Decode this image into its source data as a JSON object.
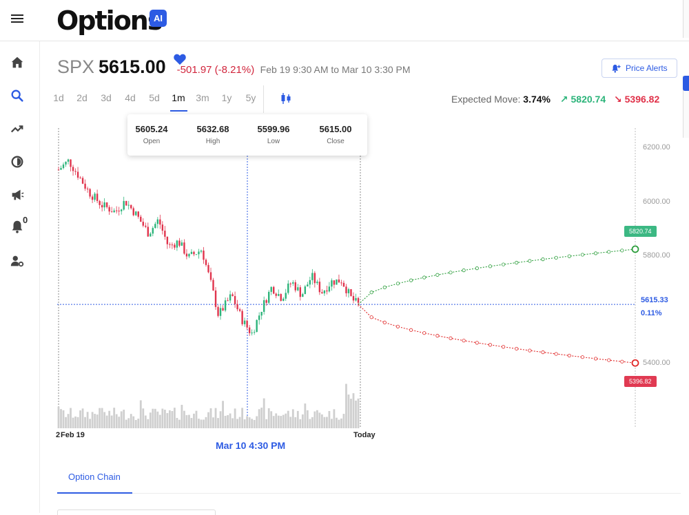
{
  "app": {
    "logo": "Options",
    "ai_badge": "AI"
  },
  "sidebar": {
    "items": [
      {
        "name": "home",
        "icon": "home-icon"
      },
      {
        "name": "search",
        "icon": "search-icon",
        "active": true
      },
      {
        "name": "trending",
        "icon": "trending-icon"
      },
      {
        "name": "pie",
        "icon": "pie-icon"
      },
      {
        "name": "announce",
        "icon": "megaphone-icon"
      },
      {
        "name": "notifications",
        "icon": "bell-icon",
        "badge": "0"
      },
      {
        "name": "account",
        "icon": "user-settings-icon"
      }
    ]
  },
  "quote": {
    "ticker": "SPX",
    "price": "5615.00",
    "change": "-501.97 (-8.21%)",
    "range": "Feb 19 9:30 AM to Mar 10 3:30 PM"
  },
  "price_alerts": {
    "label": "Price Alerts"
  },
  "periods": [
    "1d",
    "2d",
    "3d",
    "4d",
    "5d",
    "1m",
    "3m",
    "1y",
    "5y"
  ],
  "active_period": "1m",
  "expected_move": {
    "label": "Expected Move:",
    "pct": "3.74%",
    "up": "5820.74",
    "down": "5396.82"
  },
  "ohlc": {
    "open": "5605.24",
    "open_label": "Open",
    "high": "5632.68",
    "high_label": "High",
    "low": "5599.96",
    "low_label": "Low",
    "close": "5615.00",
    "close_label": "Close"
  },
  "chart": {
    "y_ticks": [
      "6200.00",
      "6000.00",
      "5800.00",
      "5400.00"
    ],
    "upper_tag": "5820.74",
    "lower_tag": "5396.82",
    "current_price": "5615.33",
    "current_pct": "0.11%",
    "x_start": "Feb 19",
    "x_start_prefix": "2",
    "x_end": "Today",
    "crosshair_date": "Mar 10 4:30 PM"
  },
  "chart_data": {
    "type": "candlestick",
    "title": "",
    "y_ticks": [
      6200,
      6000,
      5800,
      5400
    ],
    "ylim": [
      5165,
      6250
    ],
    "colors": {
      "up": "#2cb47a",
      "down": "#e0334c",
      "volume": "#cfcfcf",
      "crosshair": "#2d5be3"
    },
    "start_price": 6117,
    "current_price": 5615,
    "low_projection_price": 5396.82,
    "high_projection_price": 5820.74
  },
  "tabs": {
    "option_chain": "Option Chain"
  }
}
